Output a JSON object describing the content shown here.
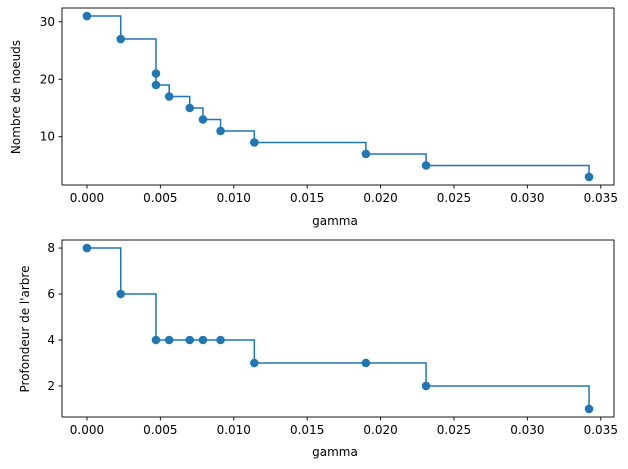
{
  "chart_data": [
    {
      "type": "line",
      "drawstyle": "steps-post",
      "title": "",
      "xlabel": "gamma",
      "ylabel": "Nombre de noeuds",
      "xlim": [
        -0.0017,
        0.0359
      ],
      "ylim": [
        1.6,
        32.4
      ],
      "xticks": [
        0.0,
        0.005,
        0.01,
        0.015,
        0.02,
        0.025,
        0.03,
        0.035
      ],
      "xtick_labels": [
        "0.000",
        "0.005",
        "0.010",
        "0.015",
        "0.020",
        "0.025",
        "0.030",
        "0.035"
      ],
      "yticks": [
        10,
        20,
        30
      ],
      "ytick_labels": [
        "10",
        "20",
        "30"
      ],
      "grid": false,
      "color": "#1f77b4",
      "series": [
        {
          "x": [
            0.0,
            0.0023,
            0.0047,
            0.0047,
            0.0056,
            0.007,
            0.0079,
            0.0091,
            0.0114,
            0.019,
            0.0231,
            0.0342
          ],
          "y": [
            31,
            27,
            21,
            19,
            17,
            15,
            13,
            11,
            9,
            7,
            5,
            3
          ]
        }
      ]
    },
    {
      "type": "line",
      "drawstyle": "steps-post",
      "title": "",
      "xlabel": "gamma",
      "ylabel": "Profondeur de l'arbre",
      "xlim": [
        -0.0017,
        0.0359
      ],
      "ylim": [
        0.65,
        8.35
      ],
      "xticks": [
        0.0,
        0.005,
        0.01,
        0.015,
        0.02,
        0.025,
        0.03,
        0.035
      ],
      "xtick_labels": [
        "0.000",
        "0.005",
        "0.010",
        "0.015",
        "0.020",
        "0.025",
        "0.030",
        "0.035"
      ],
      "yticks": [
        2,
        4,
        6,
        8
      ],
      "ytick_labels": [
        "2",
        "4",
        "6",
        "8"
      ],
      "grid": false,
      "color": "#1f77b4",
      "series": [
        {
          "x": [
            0.0,
            0.0023,
            0.0047,
            0.0056,
            0.007,
            0.0079,
            0.0091,
            0.0114,
            0.019,
            0.0231,
            0.0342
          ],
          "y": [
            8,
            6,
            4,
            4,
            4,
            4,
            4,
            3,
            3,
            2,
            1
          ]
        }
      ]
    }
  ]
}
